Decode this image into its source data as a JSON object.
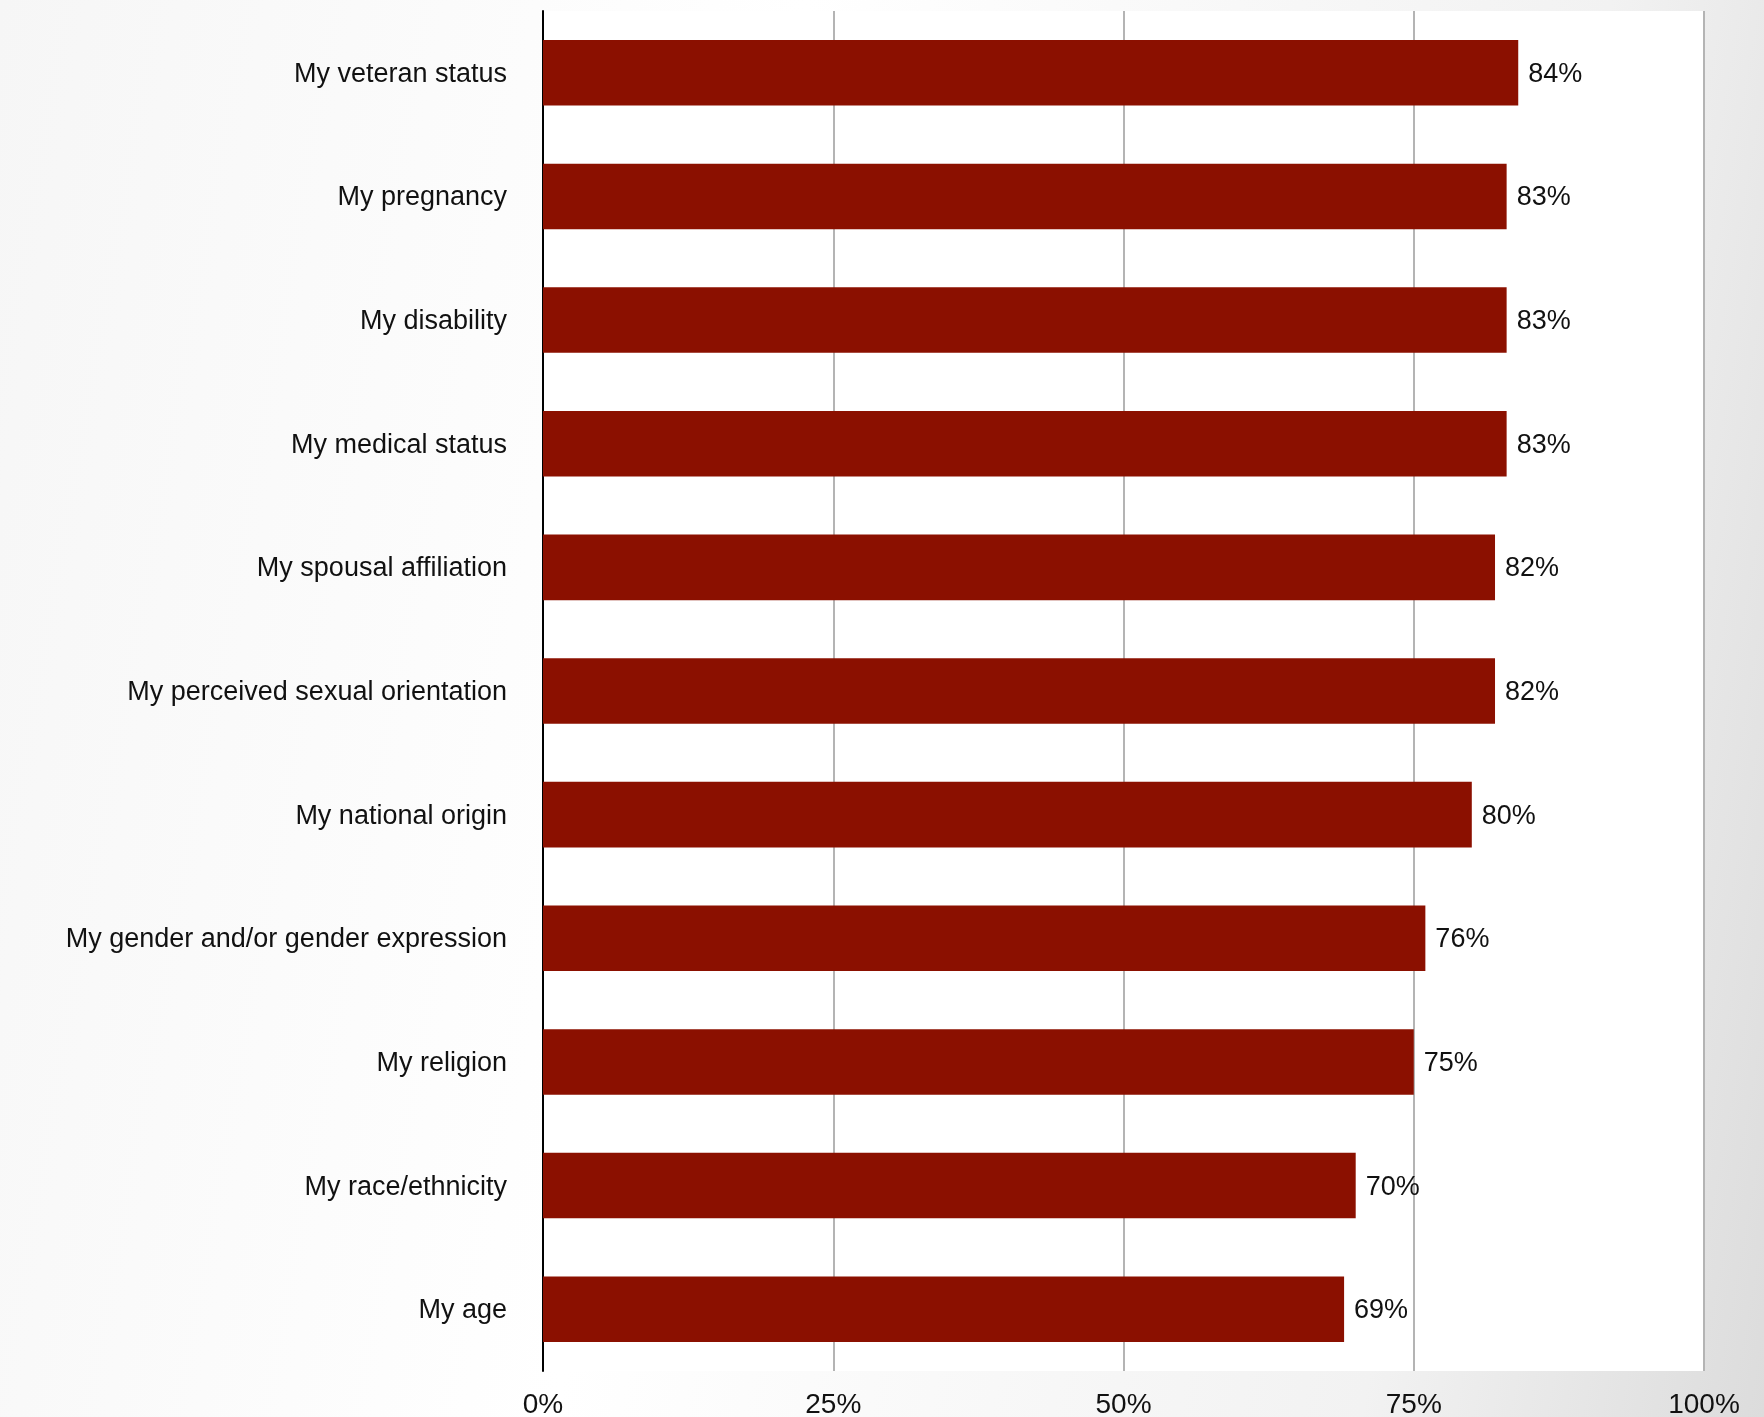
{
  "chart_data": {
    "type": "bar",
    "orientation": "horizontal",
    "categories": [
      "My veteran status",
      "My pregnancy",
      "My disability",
      "My medical status",
      "My spousal affiliation",
      "My perceived sexual orientation",
      "My national origin",
      "My gender and/or gender expression",
      "My religion",
      "My race/ethnicity",
      "My age"
    ],
    "values": [
      84,
      83,
      83,
      83,
      82,
      82,
      80,
      76,
      75,
      70,
      69
    ],
    "value_labels": [
      "84%",
      "83%",
      "83%",
      "83%",
      "82%",
      "82%",
      "80%",
      "76%",
      "75%",
      "70%",
      "69%"
    ],
    "color": "#8b1000",
    "xlim": [
      0,
      100
    ],
    "xticks": [
      {
        "value": 0,
        "label": "0%"
      },
      {
        "value": 25,
        "label": "25%"
      },
      {
        "value": 50,
        "label": "50%"
      },
      {
        "value": 75,
        "label": "75%"
      },
      {
        "value": 100,
        "label": "100%"
      }
    ],
    "grid": "x"
  }
}
